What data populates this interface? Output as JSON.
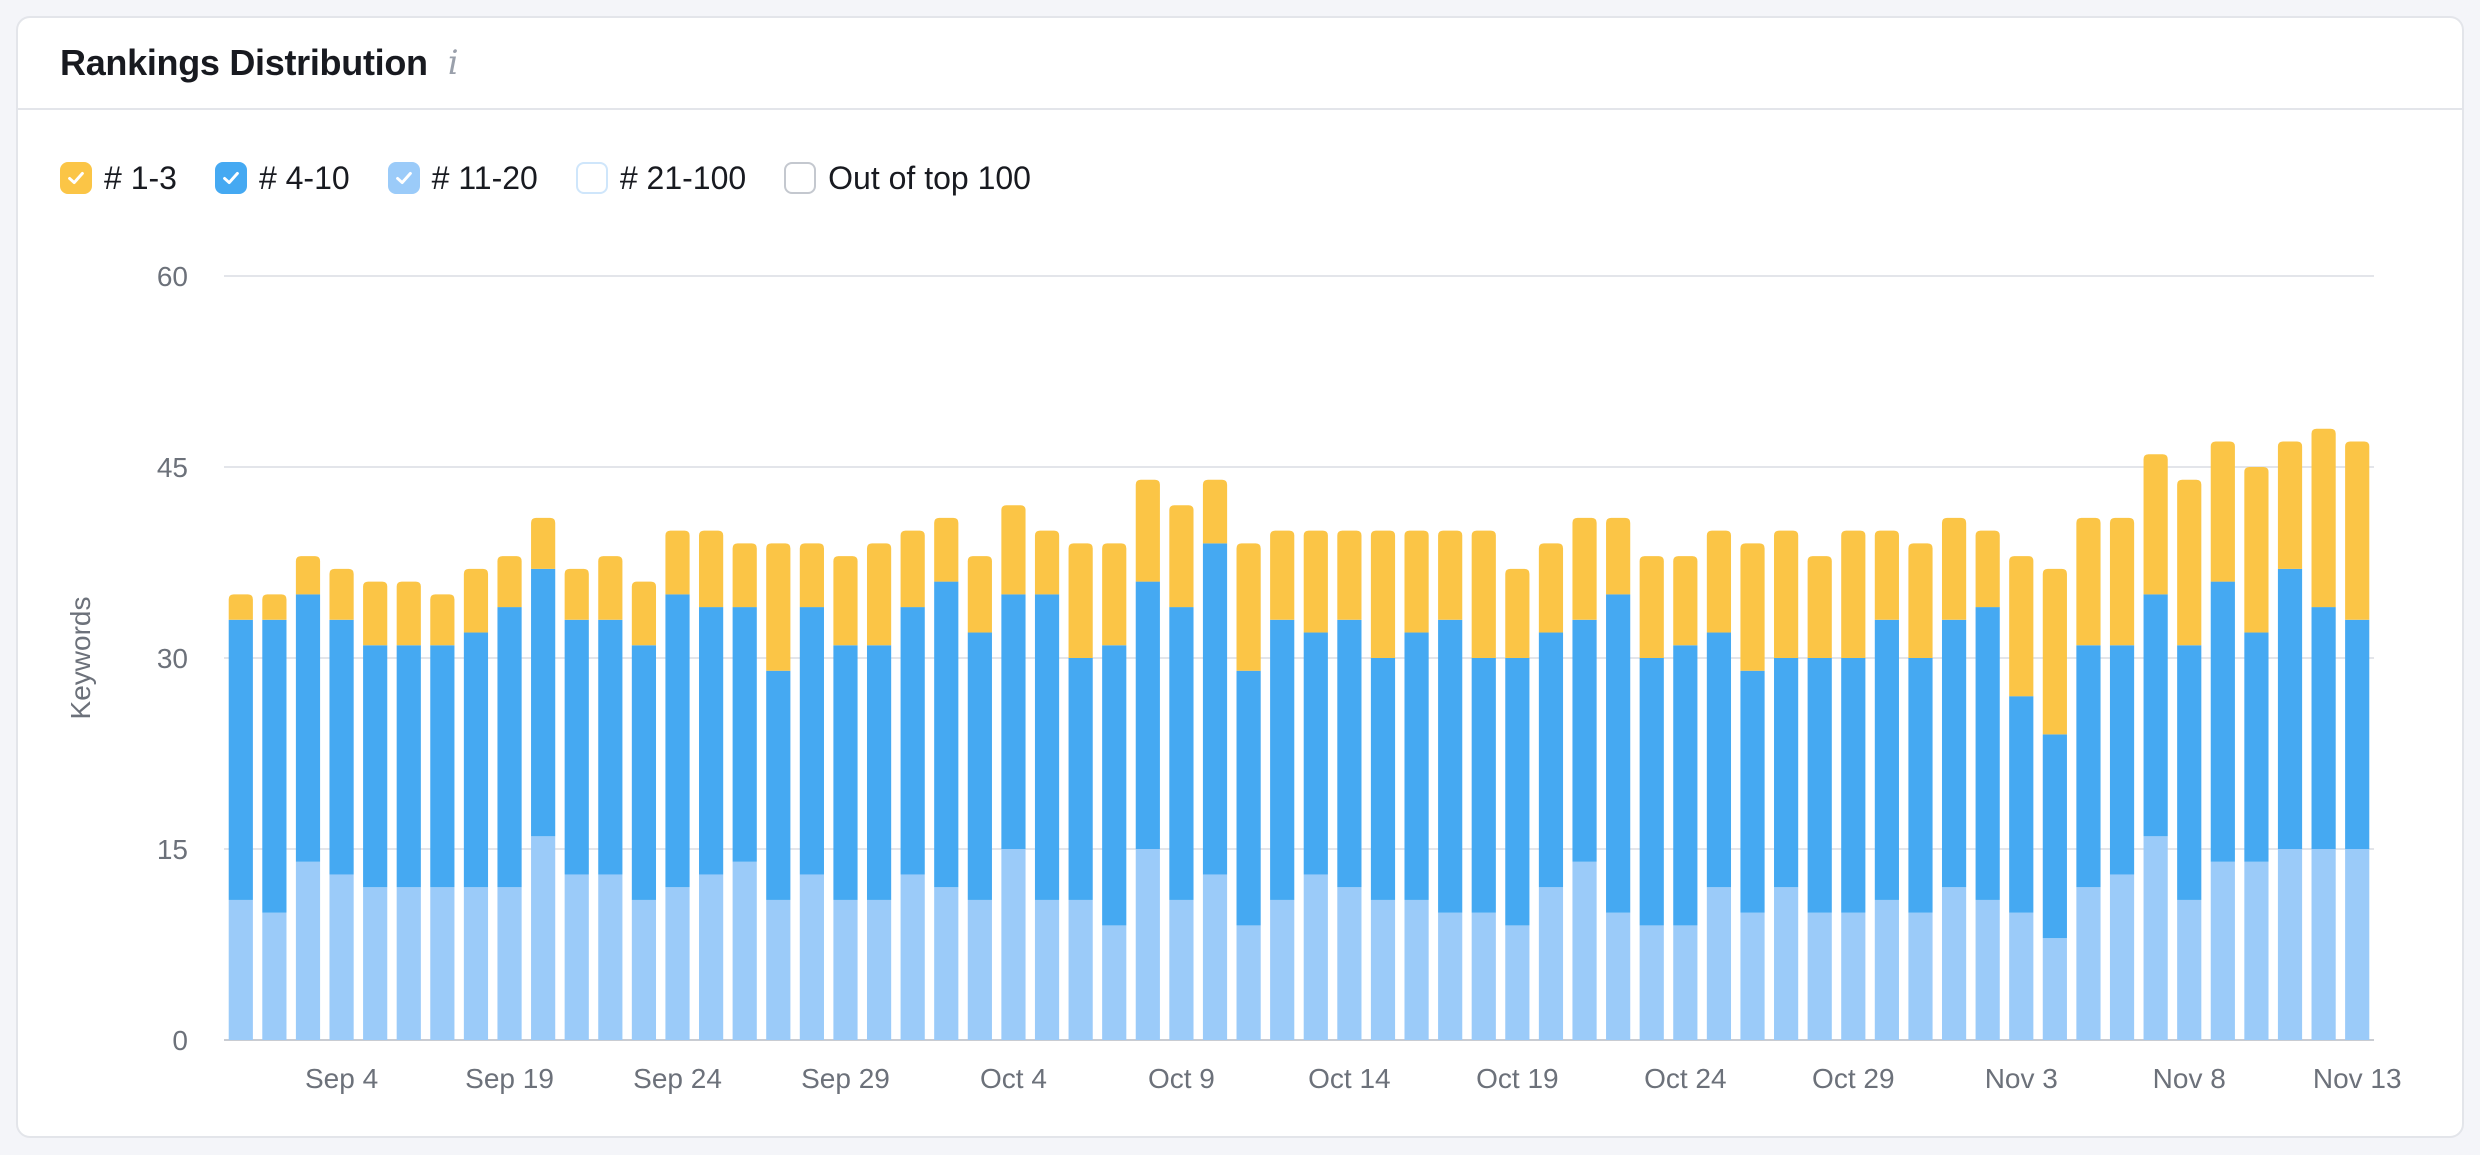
{
  "card": {
    "title": "Rankings Distribution",
    "info_icon": "info-icon"
  },
  "legend": [
    {
      "label": "# 1-3",
      "checked": true,
      "color": "#fbc546"
    },
    {
      "label": "# 4-10",
      "checked": true,
      "color": "#45a9f2"
    },
    {
      "label": "# 11-20",
      "checked": true,
      "color": "#9bcbf9"
    },
    {
      "label": "# 21-100",
      "checked": false,
      "color": "#cfe6fb"
    },
    {
      "label": "Out of top 100",
      "checked": false,
      "color": "#c4c8cf"
    }
  ],
  "chart_data": {
    "type": "bar",
    "stacked": true,
    "ylabel": "Keywords",
    "ylim": [
      0,
      60
    ],
    "yticks": [
      0,
      15,
      30,
      45,
      60
    ],
    "grid": true,
    "xtick_labels": [
      "Sep 4",
      "Sep 19",
      "Sep 24",
      "Sep 29",
      "Oct 4",
      "Oct 9",
      "Oct 14",
      "Oct 19",
      "Oct 24",
      "Oct 29",
      "Nov 3",
      "Nov 8",
      "Nov 13"
    ],
    "xtick_bar_index": [
      3,
      8,
      13,
      18,
      23,
      28,
      33,
      38,
      43,
      48,
      53,
      58,
      63
    ],
    "series": [
      {
        "name": "# 11-20",
        "color": "#9bcbf9",
        "values": [
          11,
          10,
          14,
          13,
          12,
          12,
          12,
          12,
          12,
          16,
          13,
          13,
          11,
          12,
          13,
          14,
          11,
          13,
          11,
          11,
          13,
          12,
          11,
          15,
          11,
          11,
          9,
          15,
          11,
          13,
          9,
          11,
          13,
          12,
          11,
          11,
          10,
          10,
          9,
          12,
          14,
          10,
          9,
          9,
          12,
          10,
          12,
          10,
          10,
          11,
          10,
          12,
          11,
          10,
          8,
          12,
          13,
          16,
          11,
          14,
          14,
          15,
          15,
          15
        ]
      },
      {
        "name": "# 4-10",
        "color": "#45a9f2",
        "values": [
          22,
          23,
          21,
          20,
          19,
          19,
          19,
          20,
          22,
          21,
          20,
          20,
          20,
          23,
          21,
          20,
          18,
          21,
          20,
          20,
          21,
          24,
          21,
          20,
          24,
          19,
          22,
          21,
          23,
          26,
          20,
          22,
          19,
          21,
          19,
          21,
          23,
          20,
          21,
          20,
          19,
          25,
          21,
          22,
          20,
          19,
          18,
          20,
          20,
          22,
          20,
          21,
          23,
          17,
          16,
          19,
          18,
          19,
          20,
          22,
          18,
          22,
          19,
          18
        ]
      },
      {
        "name": "# 1-3",
        "color": "#fbc546",
        "values": [
          2,
          2,
          3,
          4,
          5,
          5,
          4,
          5,
          4,
          4,
          4,
          5,
          5,
          5,
          6,
          5,
          10,
          5,
          7,
          8,
          6,
          5,
          6,
          7,
          5,
          9,
          8,
          8,
          8,
          5,
          10,
          7,
          8,
          7,
          10,
          8,
          7,
          10,
          7,
          7,
          8,
          6,
          8,
          7,
          8,
          10,
          10,
          8,
          10,
          7,
          9,
          8,
          6,
          11,
          13,
          10,
          10,
          11,
          13,
          11,
          13,
          10,
          14,
          14
        ]
      }
    ]
  }
}
